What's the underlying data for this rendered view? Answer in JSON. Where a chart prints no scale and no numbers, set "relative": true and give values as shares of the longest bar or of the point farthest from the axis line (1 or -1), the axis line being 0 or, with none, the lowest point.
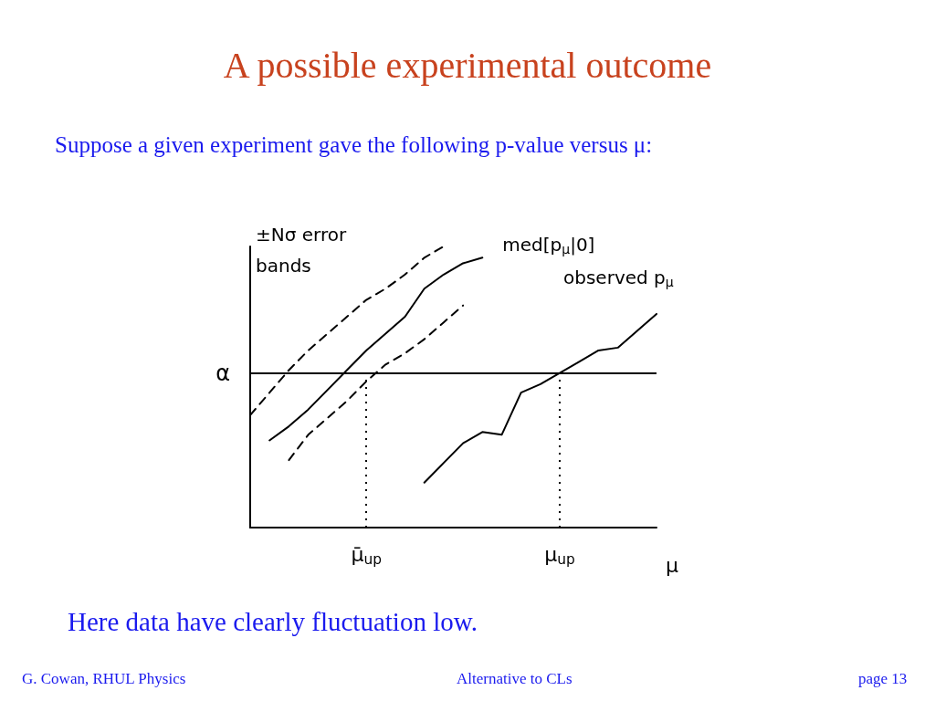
{
  "chart_data": {
    "type": "line",
    "title": "A possible experimental outcome",
    "subtitle": "Suppose a given experiment gave the following p-value versus μ:",
    "xlabel": "μ",
    "categories": [
      null,
      null,
      null,
      null,
      null,
      null,
      "μ̄$_{up}$",
      null,
      null,
      null,
      null,
      null,
      null,
      null,
      null,
      null,
      "μ$_{up}$",
      null,
      null,
      null,
      null,
      null
    ],
    "relative": true,
    "series": [
      {
        "color": "#000000",
        "line_style": "dashed",
        "values": [
          0.4,
          0.48,
          0.56,
          0.63,
          0.69,
          0.75,
          0.81,
          0.85,
          0.9,
          0.96,
          1,
          null,
          null,
          null,
          null,
          null,
          null,
          null,
          null,
          null,
          null,
          null
        ]
      },
      {
        "name": "med[p$_{μ}$|0]",
        "color": "#000000",
        "line_style": "solid",
        "values": [
          null,
          0.31,
          0.36,
          0.42,
          0.49,
          0.56,
          0.63,
          0.69,
          0.75,
          0.85,
          0.9,
          0.94,
          0.96,
          null,
          null,
          null,
          null,
          null,
          null,
          null,
          null,
          null
        ]
      },
      {
        "color": "#000000",
        "line_style": "dashed",
        "values": [
          null,
          null,
          0.24,
          0.33,
          0.39,
          0.45,
          0.52,
          0.58,
          0.62,
          0.67,
          0.73,
          0.79,
          null,
          null,
          null,
          null,
          null,
          null,
          null,
          null,
          null,
          null
        ]
      },
      {
        "name": "observed p$_{μ}$",
        "color": "#000000",
        "line_style": "solid",
        "values": [
          null,
          null,
          null,
          null,
          null,
          null,
          null,
          null,
          null,
          0.16,
          0.23,
          0.3,
          0.34,
          0.33,
          0.48,
          0.51,
          0.55,
          0.59,
          0.63,
          0.64,
          0.7,
          0.76
        ]
      }
    ],
    "ref_lines": [
      {
        "axis": "y",
        "value": 0.55,
        "label": "α",
        "color": "#000000",
        "line_style": "solid"
      },
      {
        "axis": "x",
        "value": "μ̄$_{up}$",
        "color": "#000000",
        "line_style": "dotted"
      },
      {
        "axis": "x",
        "value": "μ$_{up}$",
        "color": "#000000",
        "line_style": "dotted"
      }
    ],
    "annotations": [
      "±Nσ error bands",
      "Here data have clearly fluctuation low.",
      "G. Cowan, RHUL Physics",
      "Alternative to CLs",
      "page 13"
    ],
    "grid": false,
    "legend": false,
    "marker": "none",
    "tick_labels": "x"
  }
}
